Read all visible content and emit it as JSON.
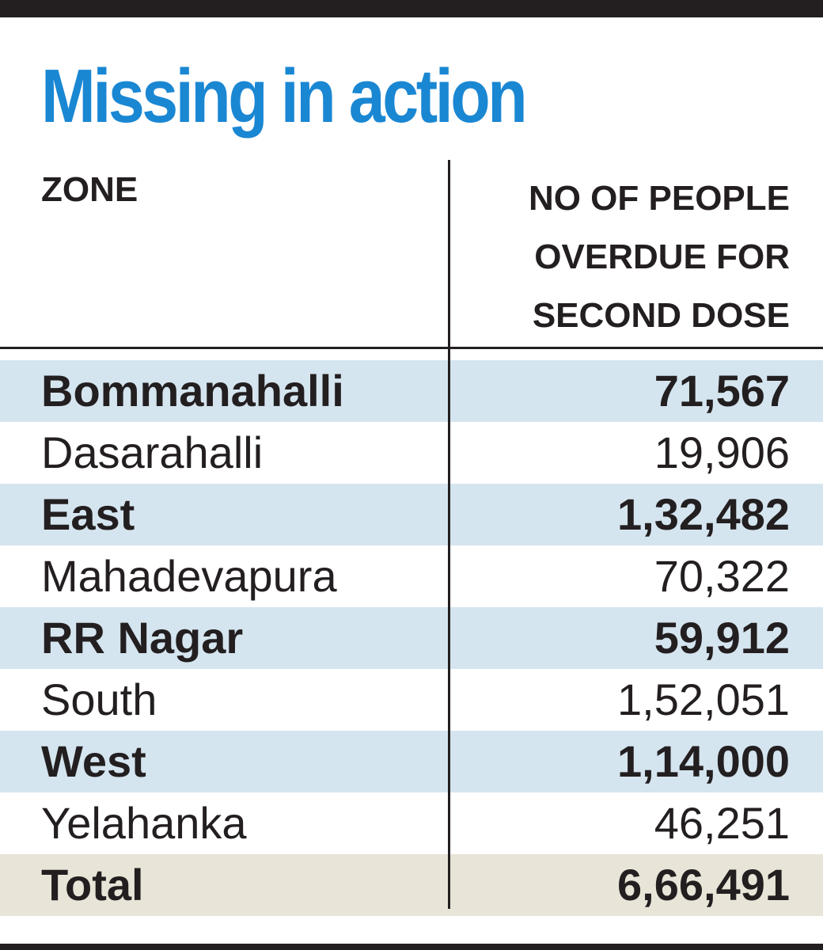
{
  "title": "Missing in action",
  "columns": {
    "zone": "ZONE",
    "value_lines": [
      "NO OF PEOPLE",
      "OVERDUE FOR",
      "SECOND DOSE"
    ]
  },
  "colors": {
    "title": "#1a87d3",
    "row_shade": "#d5e5ef",
    "total_shade": "#e8e5d8",
    "text": "#231f20"
  },
  "chart_data": {
    "type": "table",
    "title": "Missing in action",
    "columns": [
      "ZONE",
      "NO OF PEOPLE OVERDUE FOR SECOND DOSE"
    ],
    "rows": [
      {
        "zone": "Bommanahalli",
        "value": "71,567"
      },
      {
        "zone": "Dasarahalli",
        "value": "19,906"
      },
      {
        "zone": "East",
        "value": "1,32,482"
      },
      {
        "zone": "Mahadevapura",
        "value": "70,322"
      },
      {
        "zone": "RR Nagar",
        "value": "59,912"
      },
      {
        "zone": "South",
        "value": "1,52,051"
      },
      {
        "zone": "West",
        "value": "1,14,000"
      },
      {
        "zone": "Yelahanka",
        "value": "46,251"
      }
    ],
    "total": {
      "label": "Total",
      "value": "6,66,491"
    }
  }
}
